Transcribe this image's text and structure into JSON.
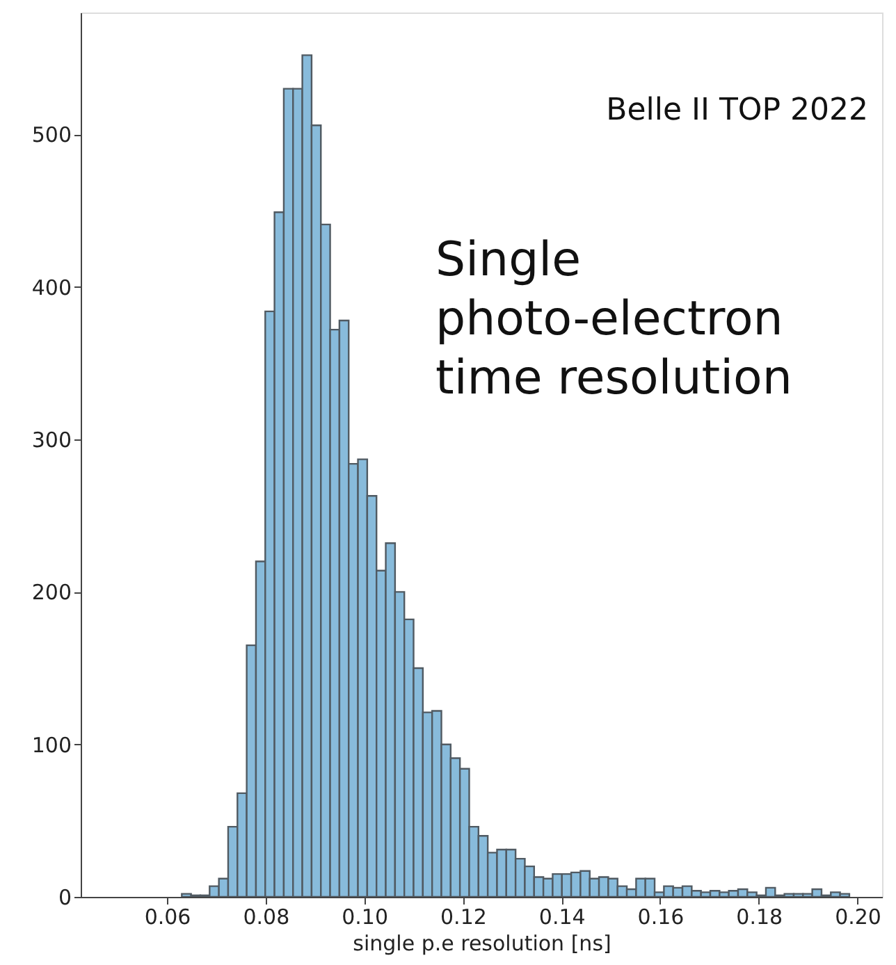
{
  "chart_data": {
    "type": "histogram",
    "xlabel": "single p.e resolution [ns]",
    "annotations": [
      "Belle II TOP 2022",
      "Single\nphoto-electron\ntime resolution"
    ],
    "bins": [
      0.063,
      0.06488,
      0.06676,
      0.06864,
      0.07052,
      0.0724,
      0.07428,
      0.07616,
      0.07804,
      0.07992,
      0.0818,
      0.08368,
      0.08556,
      0.08744,
      0.08932,
      0.0912,
      0.09308,
      0.09496,
      0.09684,
      0.09872,
      0.1006,
      0.10248,
      0.10436,
      0.10624,
      0.10812,
      0.11,
      0.11188,
      0.11376,
      0.11564,
      0.11752,
      0.1194,
      0.12128,
      0.12316,
      0.12504,
      0.12692,
      0.1288,
      0.13068,
      0.13256,
      0.13444,
      0.13632,
      0.1382,
      0.14008,
      0.14196,
      0.14384,
      0.14572,
      0.1476,
      0.14948,
      0.15136,
      0.15324,
      0.15512,
      0.157,
      0.15888,
      0.16076,
      0.16264,
      0.16452,
      0.1664,
      0.16828,
      0.17016,
      0.17204,
      0.17392,
      0.1758,
      0.17768,
      0.17956,
      0.18144,
      0.18332,
      0.1852,
      0.18708,
      0.18896,
      0.19084,
      0.19272,
      0.1946,
      0.19648,
      0.19836
    ],
    "values": [
      2,
      1,
      1,
      7,
      12,
      46,
      68,
      165,
      220,
      384,
      449,
      530,
      530,
      552,
      506,
      441,
      372,
      378,
      284,
      287,
      263,
      214,
      232,
      200,
      182,
      150,
      121,
      122,
      100,
      91,
      84,
      46,
      40,
      29,
      31,
      31,
      25,
      20,
      13,
      12,
      15,
      15,
      16,
      17,
      12,
      13,
      12,
      7,
      5,
      12,
      12,
      3,
      7,
      6,
      7,
      4,
      3,
      4,
      3,
      4,
      5,
      3,
      1,
      6,
      1,
      2,
      2,
      2,
      5,
      1,
      3,
      2
    ],
    "color": "#88bbdb",
    "xlim": [
      0.0425,
      0.205
    ],
    "ylim": [
      0,
      580
    ],
    "xticks": [
      0.06,
      0.08,
      {
        "value": 0.1,
        "label": "0.10"
      },
      0.12,
      0.14,
      0.16,
      0.18,
      {
        "value": 0.2,
        "label": "0.20"
      }
    ],
    "yticks": [
      0,
      100,
      200,
      300,
      400,
      500
    ],
    "grid": false
  }
}
